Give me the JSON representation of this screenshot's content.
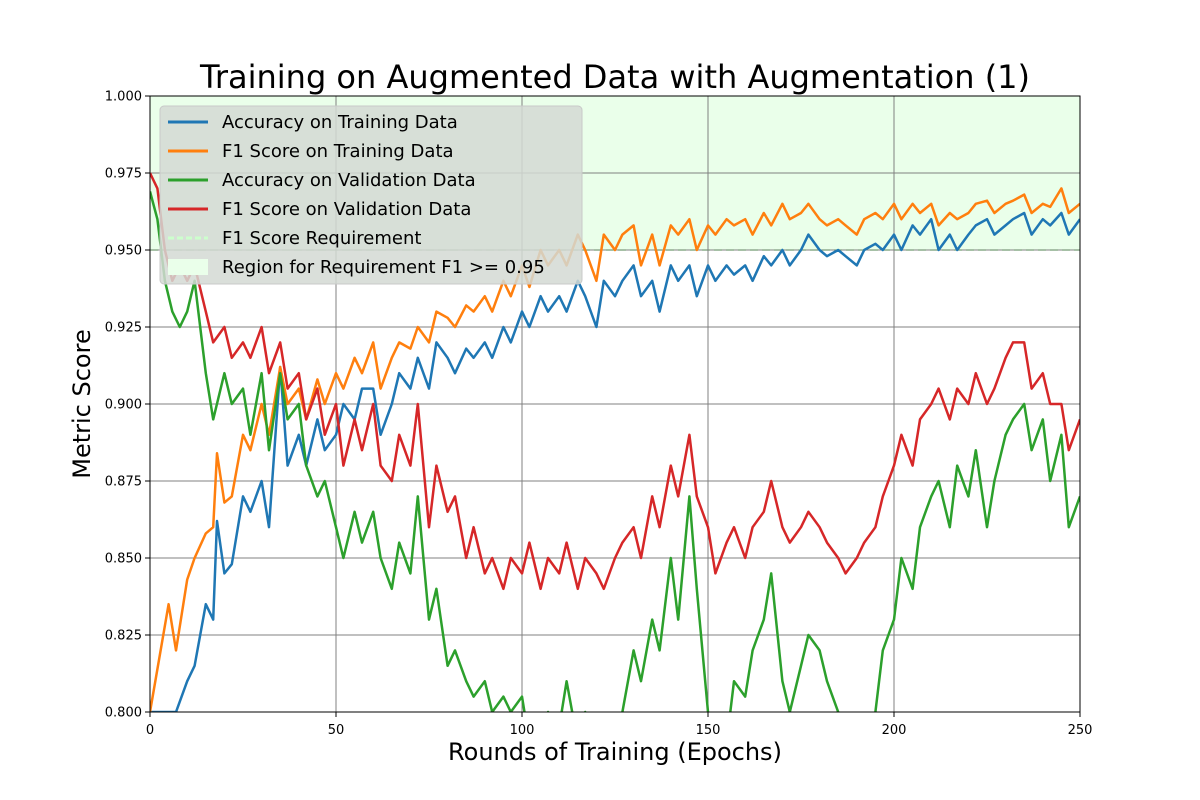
{
  "chart_data": {
    "type": "line",
    "title": "Training on Augmented Data with Augmentation (1)",
    "xlabel": "Rounds of Training (Epochs)",
    "ylabel": "Metric Score",
    "xlim": [
      0,
      250
    ],
    "ylim": [
      0.8,
      1.0
    ],
    "xticks": [
      0,
      50,
      100,
      150,
      200,
      250
    ],
    "yticks": [
      0.8,
      0.825,
      0.85,
      0.875,
      0.9,
      0.925,
      0.95,
      0.975,
      1.0
    ],
    "xtick_labels": [
      "0",
      "50",
      "100",
      "150",
      "200",
      "250"
    ],
    "ytick_labels": [
      "0.800",
      "0.825",
      "0.850",
      "0.875",
      "0.900",
      "0.925",
      "0.950",
      "0.975",
      "1.000"
    ],
    "grid": true,
    "legend_placement": "top-left",
    "requirement": {
      "label": "F1 Score Requirement",
      "value": 0.95,
      "color": "#ccffcc"
    },
    "region": {
      "label": "Region for Requirement F1 >= 0.95",
      "from": 0.95,
      "to": 1.0,
      "color": "#eaffea"
    },
    "series": [
      {
        "name": "Accuracy on Training Data",
        "color": "#1f77b4",
        "x": [
          0,
          5,
          7,
          10,
          12,
          15,
          17,
          18,
          20,
          22,
          25,
          27,
          30,
          32,
          35,
          37,
          40,
          42,
          45,
          47,
          50,
          52,
          55,
          57,
          60,
          62,
          65,
          67,
          70,
          72,
          75,
          77,
          80,
          82,
          85,
          87,
          90,
          92,
          95,
          97,
          100,
          102,
          105,
          107,
          110,
          112,
          115,
          117,
          120,
          122,
          125,
          127,
          130,
          132,
          135,
          137,
          140,
          142,
          145,
          147,
          150,
          152,
          155,
          157,
          160,
          162,
          165,
          167,
          170,
          172,
          175,
          177,
          180,
          182,
          185,
          187,
          190,
          192,
          195,
          197,
          200,
          202,
          205,
          207,
          210,
          212,
          215,
          217,
          220,
          222,
          225,
          227,
          230,
          232,
          235,
          237,
          240,
          242,
          245,
          247,
          250
        ],
        "y": [
          0.8,
          0.8,
          0.8,
          0.81,
          0.815,
          0.835,
          0.83,
          0.862,
          0.845,
          0.848,
          0.87,
          0.865,
          0.875,
          0.86,
          0.912,
          0.88,
          0.89,
          0.88,
          0.895,
          0.885,
          0.89,
          0.9,
          0.895,
          0.905,
          0.905,
          0.89,
          0.9,
          0.91,
          0.905,
          0.915,
          0.905,
          0.92,
          0.915,
          0.91,
          0.918,
          0.915,
          0.92,
          0.915,
          0.925,
          0.92,
          0.93,
          0.925,
          0.935,
          0.93,
          0.935,
          0.93,
          0.94,
          0.935,
          0.925,
          0.94,
          0.935,
          0.94,
          0.945,
          0.935,
          0.94,
          0.93,
          0.945,
          0.94,
          0.945,
          0.935,
          0.945,
          0.94,
          0.945,
          0.942,
          0.945,
          0.94,
          0.948,
          0.945,
          0.95,
          0.945,
          0.95,
          0.955,
          0.95,
          0.948,
          0.95,
          0.948,
          0.945,
          0.95,
          0.952,
          0.95,
          0.955,
          0.95,
          0.958,
          0.955,
          0.96,
          0.95,
          0.955,
          0.95,
          0.955,
          0.958,
          0.96,
          0.955,
          0.958,
          0.96,
          0.962,
          0.955,
          0.96,
          0.958,
          0.962,
          0.955,
          0.96
        ]
      },
      {
        "name": "F1 Score on Training Data",
        "color": "#ff7f0e",
        "x": [
          0,
          5,
          7,
          10,
          12,
          15,
          17,
          18,
          20,
          22,
          25,
          27,
          30,
          32,
          35,
          37,
          40,
          42,
          45,
          47,
          50,
          52,
          55,
          57,
          60,
          62,
          65,
          67,
          70,
          72,
          75,
          77,
          80,
          82,
          85,
          87,
          90,
          92,
          95,
          97,
          100,
          102,
          105,
          107,
          110,
          112,
          115,
          117,
          120,
          122,
          125,
          127,
          130,
          132,
          135,
          137,
          140,
          142,
          145,
          147,
          150,
          152,
          155,
          157,
          160,
          162,
          165,
          167,
          170,
          172,
          175,
          177,
          180,
          182,
          185,
          187,
          190,
          192,
          195,
          197,
          200,
          202,
          205,
          207,
          210,
          212,
          215,
          217,
          220,
          222,
          225,
          227,
          230,
          232,
          235,
          237,
          240,
          242,
          245,
          247,
          250
        ],
        "y": [
          0.8,
          0.835,
          0.82,
          0.843,
          0.85,
          0.858,
          0.86,
          0.884,
          0.868,
          0.87,
          0.89,
          0.885,
          0.9,
          0.89,
          0.912,
          0.9,
          0.905,
          0.895,
          0.908,
          0.9,
          0.91,
          0.905,
          0.915,
          0.91,
          0.92,
          0.905,
          0.915,
          0.92,
          0.918,
          0.925,
          0.92,
          0.93,
          0.928,
          0.925,
          0.932,
          0.93,
          0.935,
          0.93,
          0.94,
          0.935,
          0.945,
          0.938,
          0.95,
          0.945,
          0.95,
          0.945,
          0.955,
          0.95,
          0.94,
          0.955,
          0.95,
          0.955,
          0.958,
          0.945,
          0.955,
          0.945,
          0.958,
          0.955,
          0.96,
          0.95,
          0.958,
          0.955,
          0.96,
          0.958,
          0.96,
          0.955,
          0.962,
          0.958,
          0.965,
          0.96,
          0.962,
          0.965,
          0.96,
          0.958,
          0.96,
          0.958,
          0.955,
          0.96,
          0.962,
          0.96,
          0.965,
          0.96,
          0.965,
          0.962,
          0.965,
          0.958,
          0.962,
          0.96,
          0.962,
          0.965,
          0.966,
          0.962,
          0.965,
          0.966,
          0.968,
          0.962,
          0.965,
          0.964,
          0.97,
          0.962,
          0.965
        ]
      },
      {
        "name": "Accuracy on Validation Data",
        "color": "#2ca02c",
        "x": [
          0,
          2,
          4,
          6,
          8,
          10,
          12,
          15,
          17,
          20,
          22,
          25,
          27,
          30,
          32,
          35,
          37,
          40,
          42,
          45,
          47,
          50,
          52,
          55,
          57,
          60,
          62,
          65,
          67,
          70,
          72,
          75,
          77,
          80,
          82,
          85,
          87,
          90,
          92,
          95,
          97,
          100,
          102,
          105,
          107,
          110,
          112,
          115,
          117,
          120,
          122,
          125,
          127,
          130,
          132,
          135,
          137,
          140,
          142,
          145,
          147,
          150,
          152,
          155,
          157,
          160,
          162,
          165,
          167,
          170,
          172,
          175,
          177,
          180,
          182,
          185,
          187,
          190,
          192,
          195,
          197,
          200,
          202,
          205,
          207,
          210,
          212,
          215,
          217,
          220,
          222,
          225,
          227,
          230,
          232,
          235,
          237,
          240,
          242,
          245,
          247,
          250
        ],
        "y": [
          0.969,
          0.96,
          0.94,
          0.93,
          0.925,
          0.93,
          0.94,
          0.91,
          0.895,
          0.91,
          0.9,
          0.905,
          0.89,
          0.91,
          0.885,
          0.91,
          0.895,
          0.9,
          0.88,
          0.87,
          0.875,
          0.86,
          0.85,
          0.865,
          0.855,
          0.865,
          0.85,
          0.84,
          0.855,
          0.845,
          0.87,
          0.83,
          0.84,
          0.815,
          0.82,
          0.81,
          0.805,
          0.81,
          0.8,
          0.805,
          0.8,
          0.805,
          0.79,
          0.79,
          0.8,
          0.795,
          0.81,
          0.79,
          0.8,
          0.79,
          0.78,
          0.79,
          0.8,
          0.82,
          0.81,
          0.83,
          0.82,
          0.85,
          0.83,
          0.87,
          0.84,
          0.8,
          0.78,
          0.79,
          0.81,
          0.805,
          0.82,
          0.83,
          0.845,
          0.81,
          0.8,
          0.815,
          0.825,
          0.82,
          0.81,
          0.8,
          0.795,
          0.79,
          0.795,
          0.8,
          0.82,
          0.83,
          0.85,
          0.84,
          0.86,
          0.87,
          0.875,
          0.86,
          0.88,
          0.87,
          0.885,
          0.86,
          0.875,
          0.89,
          0.895,
          0.9,
          0.885,
          0.895,
          0.875,
          0.89,
          0.86,
          0.87
        ]
      },
      {
        "name": "F1 Score on Validation Data",
        "color": "#d62728",
        "x": [
          0,
          2,
          4,
          6,
          8,
          10,
          12,
          15,
          17,
          20,
          22,
          25,
          27,
          30,
          32,
          35,
          37,
          40,
          42,
          45,
          47,
          50,
          52,
          55,
          57,
          60,
          62,
          65,
          67,
          70,
          72,
          75,
          77,
          80,
          82,
          85,
          87,
          90,
          92,
          95,
          97,
          100,
          102,
          105,
          107,
          110,
          112,
          115,
          117,
          120,
          122,
          125,
          127,
          130,
          132,
          135,
          137,
          140,
          142,
          145,
          147,
          150,
          152,
          155,
          157,
          160,
          162,
          165,
          167,
          170,
          172,
          175,
          177,
          180,
          182,
          185,
          187,
          190,
          192,
          195,
          197,
          200,
          202,
          205,
          207,
          210,
          212,
          215,
          217,
          220,
          222,
          225,
          227,
          230,
          232,
          235,
          237,
          240,
          242,
          245,
          247,
          250
        ],
        "y": [
          0.975,
          0.97,
          0.95,
          0.94,
          0.945,
          0.94,
          0.945,
          0.93,
          0.92,
          0.925,
          0.915,
          0.92,
          0.915,
          0.925,
          0.91,
          0.92,
          0.905,
          0.91,
          0.895,
          0.905,
          0.89,
          0.9,
          0.88,
          0.895,
          0.885,
          0.9,
          0.88,
          0.875,
          0.89,
          0.88,
          0.9,
          0.86,
          0.88,
          0.865,
          0.87,
          0.85,
          0.86,
          0.845,
          0.85,
          0.84,
          0.85,
          0.845,
          0.855,
          0.84,
          0.85,
          0.845,
          0.855,
          0.84,
          0.85,
          0.845,
          0.84,
          0.85,
          0.855,
          0.86,
          0.85,
          0.87,
          0.86,
          0.88,
          0.87,
          0.89,
          0.87,
          0.86,
          0.845,
          0.855,
          0.86,
          0.85,
          0.86,
          0.865,
          0.875,
          0.86,
          0.855,
          0.86,
          0.865,
          0.86,
          0.855,
          0.85,
          0.845,
          0.85,
          0.855,
          0.86,
          0.87,
          0.88,
          0.89,
          0.88,
          0.895,
          0.9,
          0.905,
          0.895,
          0.905,
          0.9,
          0.91,
          0.9,
          0.905,
          0.915,
          0.92,
          0.92,
          0.905,
          0.91,
          0.9,
          0.9,
          0.885,
          0.895
        ]
      }
    ]
  }
}
